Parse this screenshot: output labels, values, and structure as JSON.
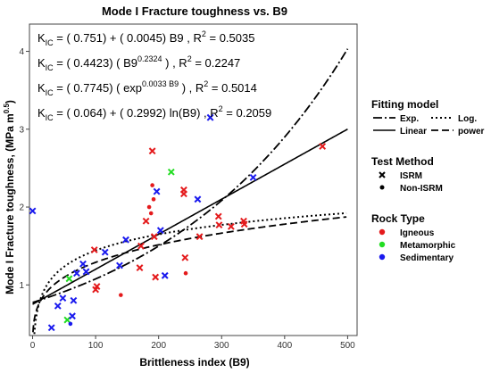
{
  "chart_data": {
    "type": "scatter",
    "title": "Mode I Fracture toughness vs. B9",
    "xlabel": "Brittleness index (B9)",
    "ylabel": "Mode I Fracture toughness, (MPa m",
    "ylabel_sup": "0.5",
    "ylabel_close": ")",
    "xlim": [
      -5,
      515
    ],
    "ylim": [
      0.35,
      4.35
    ],
    "x_ticks": [
      0,
      100,
      200,
      300,
      400,
      500
    ],
    "y_ticks": [
      1,
      2,
      3,
      4
    ],
    "grid": false,
    "equations": [
      {
        "pre": "K",
        "sub": "IC",
        "mid": " = ( 0.751) + ( 0.0045) B9 ,  R",
        "sup": "2",
        "post": " = 0.5035"
      },
      {
        "pre": "K",
        "sub": "IC",
        "mid": " = ( 0.4423) ( B9",
        "sup": "0.2324",
        "post": " ) ,  R",
        "sup2": "2",
        "post2": " = 0.2247"
      },
      {
        "pre": "K",
        "sub": "IC",
        "mid": " = ( 0.7745) ( exp",
        "sup": "0.0033 B9",
        "post": " ) ,  R",
        "sup2": "2",
        "post2": " = 0.5014"
      },
      {
        "pre": "K",
        "sub": "IC",
        "mid": " = ( 0.064) + ( 0.2992) ln(B9) ,  R",
        "sup": "2",
        "post": " = 0.2059"
      }
    ],
    "fits": [
      {
        "name": "Exp.",
        "model": "exp",
        "a": 0.7745,
        "b": 0.0033,
        "dash": "10,3,2,3",
        "width": 1.8
      },
      {
        "name": "Log.",
        "model": "log",
        "a": 0.064,
        "b": 0.2992,
        "dash": "2,3",
        "width": 2
      },
      {
        "name": "Linear",
        "model": "linear",
        "a": 0.751,
        "b": 0.0045,
        "dash": "",
        "width": 1.6
      },
      {
        "name": "power",
        "model": "power",
        "a": 0.4423,
        "b": 0.2324,
        "dash": "8,4",
        "width": 1.8
      }
    ],
    "legend": {
      "fitting_title": "Fitting model",
      "fitting_items": [
        "Exp.",
        "Log.",
        "Linear",
        "power"
      ],
      "method_title": "Test Method",
      "method_items": [
        "ISRM",
        "Non-ISRM"
      ],
      "rock_title": "Rock Type",
      "rock_items": [
        {
          "name": "Igneous",
          "color": "#e41a1c"
        },
        {
          "name": "Metamorphic",
          "color": "#22dd22"
        },
        {
          "name": "Sedimentary",
          "color": "#1a1aee"
        }
      ]
    },
    "points": [
      {
        "x": 0,
        "y": 1.95,
        "rock": "Sedimentary",
        "method": "ISRM"
      },
      {
        "x": 30,
        "y": 0.45,
        "rock": "Sedimentary",
        "method": "ISRM"
      },
      {
        "x": 40,
        "y": 0.73,
        "rock": "Sedimentary",
        "method": "ISRM"
      },
      {
        "x": 48,
        "y": 0.83,
        "rock": "Sedimentary",
        "method": "ISRM"
      },
      {
        "x": 55,
        "y": 0.55,
        "rock": "Metamorphic",
        "method": "ISRM"
      },
      {
        "x": 58,
        "y": 1.08,
        "rock": "Metamorphic",
        "method": "ISRM"
      },
      {
        "x": 60,
        "y": 0.5,
        "rock": "Sedimentary",
        "method": "Non-ISRM"
      },
      {
        "x": 63,
        "y": 0.6,
        "rock": "Sedimentary",
        "method": "ISRM"
      },
      {
        "x": 65,
        "y": 0.8,
        "rock": "Sedimentary",
        "method": "ISRM"
      },
      {
        "x": 70,
        "y": 1.15,
        "rock": "Sedimentary",
        "method": "ISRM"
      },
      {
        "x": 80,
        "y": 1.27,
        "rock": "Sedimentary",
        "method": "ISRM"
      },
      {
        "x": 85,
        "y": 1.17,
        "rock": "Sedimentary",
        "method": "ISRM"
      },
      {
        "x": 98,
        "y": 1.45,
        "rock": "Igneous",
        "method": "ISRM"
      },
      {
        "x": 100,
        "y": 0.94,
        "rock": "Igneous",
        "method": "ISRM"
      },
      {
        "x": 102,
        "y": 0.98,
        "rock": "Igneous",
        "method": "ISRM"
      },
      {
        "x": 115,
        "y": 1.42,
        "rock": "Sedimentary",
        "method": "ISRM"
      },
      {
        "x": 138,
        "y": 1.25,
        "rock": "Sedimentary",
        "method": "ISRM"
      },
      {
        "x": 140,
        "y": 0.87,
        "rock": "Igneous",
        "method": "Non-ISRM"
      },
      {
        "x": 148,
        "y": 1.58,
        "rock": "Sedimentary",
        "method": "ISRM"
      },
      {
        "x": 170,
        "y": 1.22,
        "rock": "Igneous",
        "method": "ISRM"
      },
      {
        "x": 172,
        "y": 1.5,
        "rock": "Igneous",
        "method": "ISRM"
      },
      {
        "x": 180,
        "y": 1.82,
        "rock": "Igneous",
        "method": "ISRM"
      },
      {
        "x": 185,
        "y": 2.0,
        "rock": "Igneous",
        "method": "Non-ISRM"
      },
      {
        "x": 188,
        "y": 1.92,
        "rock": "Igneous",
        "method": "Non-ISRM"
      },
      {
        "x": 190,
        "y": 2.72,
        "rock": "Igneous",
        "method": "ISRM"
      },
      {
        "x": 190,
        "y": 2.28,
        "rock": "Igneous",
        "method": "Non-ISRM"
      },
      {
        "x": 192,
        "y": 2.1,
        "rock": "Igneous",
        "method": "Non-ISRM"
      },
      {
        "x": 193,
        "y": 1.62,
        "rock": "Igneous",
        "method": "ISRM"
      },
      {
        "x": 195,
        "y": 1.1,
        "rock": "Igneous",
        "method": "ISRM"
      },
      {
        "x": 197,
        "y": 2.2,
        "rock": "Sedimentary",
        "method": "ISRM"
      },
      {
        "x": 203,
        "y": 1.7,
        "rock": "Sedimentary",
        "method": "ISRM"
      },
      {
        "x": 210,
        "y": 1.12,
        "rock": "Sedimentary",
        "method": "ISRM"
      },
      {
        "x": 220,
        "y": 2.45,
        "rock": "Metamorphic",
        "method": "ISRM"
      },
      {
        "x": 240,
        "y": 2.22,
        "rock": "Igneous",
        "method": "ISRM"
      },
      {
        "x": 240,
        "y": 2.17,
        "rock": "Igneous",
        "method": "ISRM"
      },
      {
        "x": 242,
        "y": 1.35,
        "rock": "Igneous",
        "method": "ISRM"
      },
      {
        "x": 243,
        "y": 1.15,
        "rock": "Igneous",
        "method": "Non-ISRM"
      },
      {
        "x": 262,
        "y": 2.1,
        "rock": "Sedimentary",
        "method": "ISRM"
      },
      {
        "x": 265,
        "y": 1.62,
        "rock": "Igneous",
        "method": "ISRM"
      },
      {
        "x": 282,
        "y": 3.15,
        "rock": "Sedimentary",
        "method": "ISRM"
      },
      {
        "x": 295,
        "y": 1.88,
        "rock": "Igneous",
        "method": "ISRM"
      },
      {
        "x": 296,
        "y": 1.77,
        "rock": "Igneous",
        "method": "ISRM"
      },
      {
        "x": 315,
        "y": 1.75,
        "rock": "Igneous",
        "method": "ISRM"
      },
      {
        "x": 335,
        "y": 1.82,
        "rock": "Igneous",
        "method": "ISRM"
      },
      {
        "x": 336,
        "y": 1.78,
        "rock": "Igneous",
        "method": "ISRM"
      },
      {
        "x": 350,
        "y": 2.38,
        "rock": "Sedimentary",
        "method": "ISRM"
      },
      {
        "x": 460,
        "y": 2.78,
        "rock": "Igneous",
        "method": "ISRM"
      }
    ]
  }
}
